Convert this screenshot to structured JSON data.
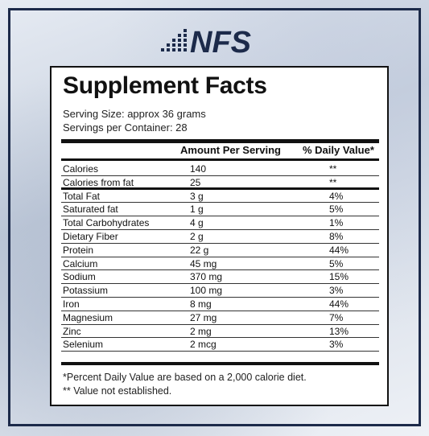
{
  "brand": {
    "logo_text": "NFS",
    "color": "#1c2a4a"
  },
  "label": {
    "title": "Supplement Facts",
    "serving_size": "Serving Size: approx 36 grams",
    "servings_per_container": "Servings per Container: 28",
    "col_amount": "Amount Per Serving",
    "col_dv": "% Daily Value*",
    "rows": [
      {
        "name": "Calories",
        "amount": "140",
        "dv": "**"
      },
      {
        "name": "Calories from fat",
        "amount": "25",
        "dv": "**"
      },
      {
        "name": "Total Fat",
        "amount": "3 g",
        "dv": "4%"
      },
      {
        "name": "Saturated fat",
        "amount": "1 g",
        "dv": "5%"
      },
      {
        "name": "Total Carbohydrates",
        "amount": "4 g",
        "dv": "1%"
      },
      {
        "name": "Dietary Fiber",
        "amount": "2 g",
        "dv": "8%"
      },
      {
        "name": "Protein",
        "amount": "22 g",
        "dv": "44%"
      },
      {
        "name": "Calcium",
        "amount": "45 mg",
        "dv": "5%"
      },
      {
        "name": "Sodium",
        "amount": "370 mg",
        "dv": "15%"
      },
      {
        "name": "Potassium",
        "amount": "100 mg",
        "dv": "3%"
      },
      {
        "name": "Iron",
        "amount": "8 mg",
        "dv": "44%"
      },
      {
        "name": "Magnesium",
        "amount": "27 mg",
        "dv": "7%"
      },
      {
        "name": "Zinc",
        "amount": "2 mg",
        "dv": "13%"
      },
      {
        "name": "Selenium",
        "amount": "2 mcg",
        "dv": "3%"
      }
    ],
    "footnote_1": "*Percent Daily Value are based on a 2,000 calorie diet.",
    "footnote_2": "** Value not established."
  }
}
